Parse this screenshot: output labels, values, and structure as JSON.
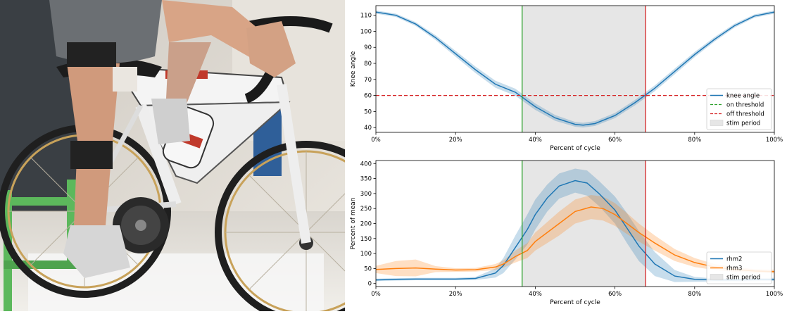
{
  "photo": {
    "description_icon": "cyclist-on-bike-trainer-photo"
  },
  "colors": {
    "blue": "#1f77b4",
    "orange": "#ff7f0e",
    "green": "#2ca02c",
    "red": "#d62728",
    "stim": "#e6e6e6"
  },
  "chart_data": [
    {
      "type": "line",
      "xlabel": "Percent of cycle",
      "ylabel": "Knee angle",
      "xlim": [
        0,
        100
      ],
      "ylim": [
        37,
        116
      ],
      "xticks": [
        "0%",
        "20%",
        "40%",
        "60%",
        "80%",
        "100%"
      ],
      "yticks": [
        "40",
        "50",
        "60",
        "70",
        "80",
        "90",
        "100",
        "110"
      ],
      "ytick_values": [
        40,
        50,
        60,
        70,
        80,
        90,
        100,
        110
      ],
      "legend": {
        "position": "lower-right",
        "entries": [
          "knee angle",
          "on threshold",
          "off threshold",
          "stim period"
        ]
      },
      "on_threshold_x": 36.7,
      "off_threshold_x": 67.7,
      "stim_period": [
        36.7,
        67.7
      ],
      "off_threshold_y": 60,
      "series": [
        {
          "name": "knee angle",
          "x": [
            0,
            5,
            10,
            15,
            20,
            25,
            30,
            35,
            40,
            45,
            50,
            52,
            55,
            60,
            65,
            70,
            75,
            80,
            85,
            90,
            95,
            100
          ],
          "values": [
            112,
            110,
            104.5,
            96,
            86,
            76,
            67,
            62,
            53,
            46,
            42,
            41.5,
            42.5,
            47.5,
            55.5,
            64.5,
            75,
            85.5,
            95,
            103.5,
            109.5,
            112
          ],
          "band": [
            1,
            1,
            1.2,
            1.5,
            1.8,
            2,
            2.2,
            2.2,
            2,
            1.8,
            1.5,
            1.5,
            1.5,
            1.6,
            1.7,
            1.8,
            1.8,
            1.6,
            1.4,
            1.2,
            1,
            1
          ]
        }
      ]
    },
    {
      "type": "line",
      "xlabel": "Percent of cycle",
      "ylabel": "Percent of mean",
      "xlim": [
        0,
        100
      ],
      "ylim": [
        -10,
        410
      ],
      "xticks": [
        "0%",
        "20%",
        "40%",
        "60%",
        "80%",
        "100%"
      ],
      "yticks": [
        "0",
        "50",
        "100",
        "150",
        "200",
        "250",
        "300",
        "350",
        "400"
      ],
      "ytick_values": [
        0,
        50,
        100,
        150,
        200,
        250,
        300,
        350,
        400
      ],
      "legend": {
        "position": "lower-right",
        "entries": [
          "rhm2",
          "rhm3",
          "stim period"
        ]
      },
      "on_threshold_x": 36.7,
      "off_threshold_x": 67.7,
      "stim_period": [
        36.7,
        67.7
      ],
      "series": [
        {
          "name": "rhm2",
          "color_key": "blue",
          "x": [
            0,
            5,
            10,
            15,
            20,
            25,
            30,
            32,
            35,
            38,
            40,
            43,
            46,
            50,
            53,
            56,
            60,
            63,
            66,
            70,
            75,
            80,
            85,
            90,
            95,
            100
          ],
          "values": [
            12,
            14,
            15,
            15,
            15,
            17,
            35,
            60,
            120,
            180,
            230,
            285,
            325,
            343,
            335,
            300,
            245,
            185,
            125,
            65,
            25,
            14,
            12,
            12,
            13,
            14
          ],
          "band": [
            4,
            4,
            4,
            4,
            4,
            5,
            15,
            25,
            40,
            50,
            50,
            45,
            42,
            40,
            42,
            42,
            45,
            50,
            50,
            40,
            20,
            8,
            5,
            5,
            5,
            5
          ]
        },
        {
          "name": "rhm3",
          "color_key": "orange",
          "x": [
            0,
            5,
            10,
            15,
            20,
            25,
            30,
            32,
            35,
            38,
            40,
            43,
            46,
            50,
            54,
            57,
            60,
            63,
            66,
            70,
            75,
            80,
            85,
            90,
            95,
            100
          ],
          "values": [
            47,
            50,
            52,
            48,
            45,
            46,
            55,
            65,
            90,
            110,
            140,
            170,
            200,
            240,
            255,
            250,
            230,
            200,
            170,
            135,
            95,
            70,
            55,
            47,
            42,
            40
          ],
          "band": [
            12,
            25,
            28,
            10,
            6,
            6,
            10,
            12,
            20,
            25,
            30,
            35,
            40,
            40,
            40,
            40,
            38,
            35,
            30,
            25,
            20,
            15,
            10,
            8,
            6,
            6
          ]
        }
      ]
    }
  ]
}
